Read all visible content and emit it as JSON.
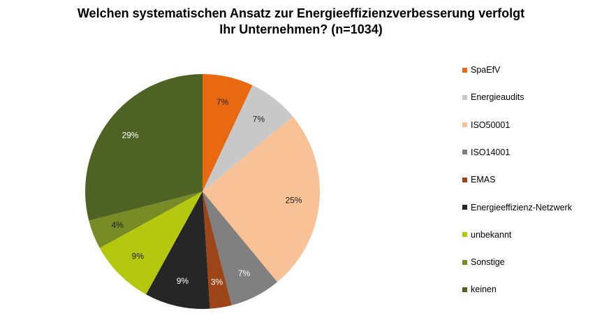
{
  "chart_data": {
    "type": "pie",
    "title": [
      "Welchen systematischen Ansatz zur Energieeffizienzverbesserung verfolgt",
      "Ihr Unternehmen? (n=1034)"
    ],
    "slices": [
      {
        "name": "SpaEfV",
        "value": 7,
        "label": "7%",
        "color": "#E8690F",
        "label_color": "#222222"
      },
      {
        "name": "Energieaudits",
        "value": 7,
        "label": "7%",
        "color": "#C8C8C8",
        "label_color": "#222222"
      },
      {
        "name": "ISO50001",
        "value": 25,
        "label": "25%",
        "color": "#F8C196",
        "label_color": "#222222"
      },
      {
        "name": "ISO14001",
        "value": 7,
        "label": "7%",
        "color": "#808080",
        "label_color": "#ffffff"
      },
      {
        "name": "EMAS",
        "value": 3,
        "label": "3%",
        "color": "#9C4519",
        "label_color": "#ffffff"
      },
      {
        "name": "Energieeffizienz-Netzwerk",
        "value": 9,
        "label": "9%",
        "color": "#262626",
        "label_color": "#ffffff"
      },
      {
        "name": "unbekannt",
        "value": 9,
        "label": "9%",
        "color": "#B3C80F",
        "label_color": "#222222"
      },
      {
        "name": "Sonstige",
        "value": 4,
        "label": "4%",
        "color": "#788B25",
        "label_color": "#222222"
      },
      {
        "name": "keinen",
        "value": 29,
        "label": "29%",
        "color": "#4E6323",
        "label_color": "#ffffff"
      }
    ],
    "start_angle": "12 o'clock",
    "direction": "clockwise",
    "legend_position": "right"
  }
}
